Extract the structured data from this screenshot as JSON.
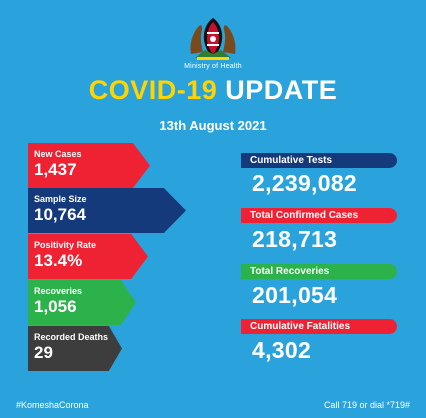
{
  "header": {
    "ministry": "Ministry of Health",
    "title_part1": "COVID-19",
    "title_part2": "UPDATE",
    "date": "13th August 2021"
  },
  "left_stats": [
    {
      "label": "New Cases",
      "value": "1,437",
      "color": "#ee2233"
    },
    {
      "label": "Sample Size",
      "value": "10,764",
      "color": "#143a7c"
    },
    {
      "label": "Positivity Rate",
      "value": "13.4%",
      "color": "#ee2233"
    },
    {
      "label": "Recoveries",
      "value": "1,056",
      "color": "#2cb24a"
    },
    {
      "label": "Recorded Deaths",
      "value": "29",
      "color": "#3d3d3d"
    }
  ],
  "right_stats": [
    {
      "label": "Cumulative Tests",
      "value": "2,239,082",
      "color": "#143a7c"
    },
    {
      "label": "Total Confirmed Cases",
      "value": "218,713",
      "color": "#ee2233"
    },
    {
      "label": "Total Recoveries",
      "value": "201,054",
      "color": "#2cb24a"
    },
    {
      "label": "Cumulative Fatalities",
      "value": "4,302",
      "color": "#ee2233"
    }
  ],
  "footer": {
    "hashtag": "#KomeshaCorona",
    "hotline": "Call 719 or dial *719#"
  },
  "colors": {
    "background": "#2aa3dc",
    "accent_yellow": "#ffd400"
  },
  "icons": {
    "emblem": "kenya-coat-of-arms-icon"
  }
}
